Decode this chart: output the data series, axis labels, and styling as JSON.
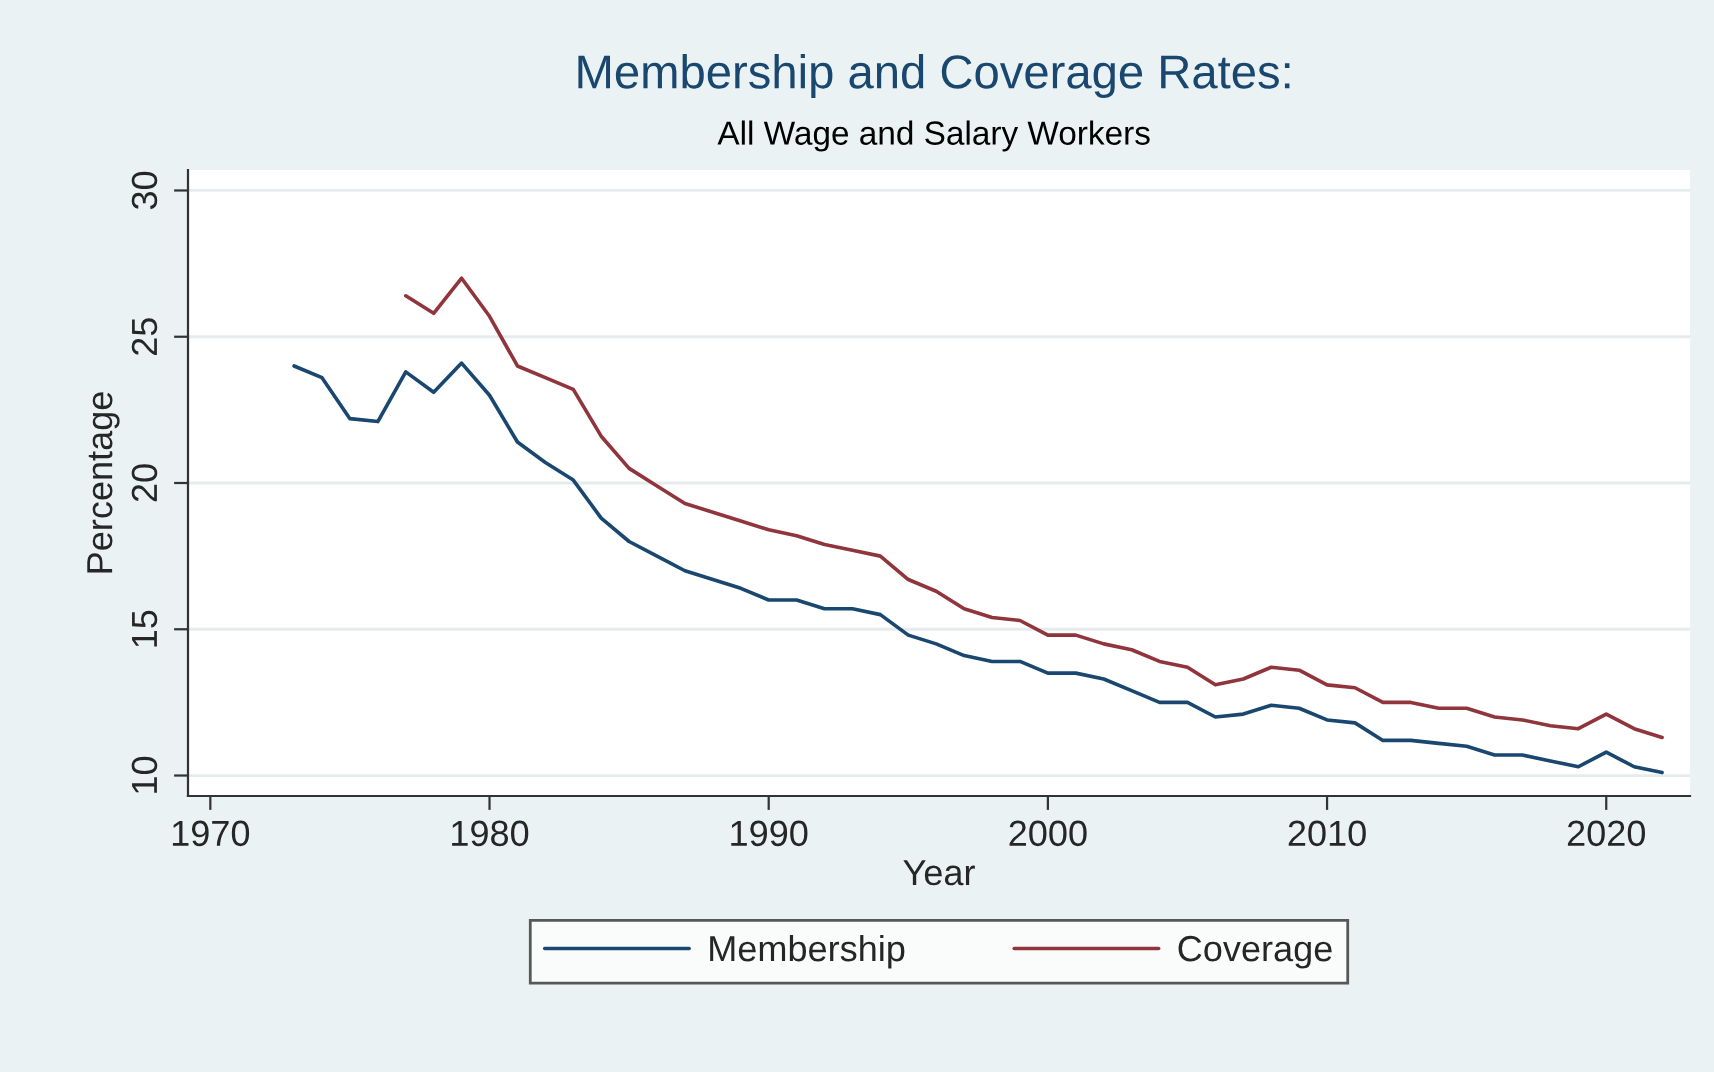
{
  "chart_data": {
    "type": "line",
    "title": "Membership and Coverage Rates:",
    "subtitle": "All Wage and Salary Workers",
    "xlabel": "Year",
    "ylabel": "Percentage",
    "xlim": [
      1969.2,
      2023.0
    ],
    "xticks": [
      1970,
      1980,
      1990,
      2000,
      2010,
      2020
    ],
    "ylim": [
      9.3,
      30.7
    ],
    "yticks": [
      10,
      15,
      20,
      25,
      30
    ],
    "grid": "y",
    "legend": "bottom",
    "line_style": "solid",
    "marker": "none",
    "series": [
      {
        "name": "Membership",
        "color": "#1a476f",
        "x": [
          1973,
          1974,
          1975,
          1976,
          1977,
          1978,
          1979,
          1980,
          1981,
          1982,
          1983,
          1984,
          1985,
          1986,
          1987,
          1988,
          1989,
          1990,
          1991,
          1992,
          1993,
          1994,
          1995,
          1996,
          1997,
          1998,
          1999,
          2000,
          2001,
          2002,
          2003,
          2004,
          2005,
          2006,
          2007,
          2008,
          2009,
          2010,
          2011,
          2012,
          2013,
          2014,
          2015,
          2016,
          2017,
          2018,
          2019,
          2020,
          2021,
          2022
        ],
        "values": [
          24.0,
          23.6,
          22.2,
          22.1,
          23.8,
          23.1,
          24.1,
          23.0,
          21.4,
          20.7,
          20.1,
          18.8,
          18.0,
          17.5,
          17.0,
          16.7,
          16.4,
          16.0,
          16.0,
          15.7,
          15.7,
          15.5,
          14.8,
          14.5,
          14.1,
          13.9,
          13.9,
          13.5,
          13.5,
          13.3,
          12.9,
          12.5,
          12.5,
          12.0,
          12.1,
          12.4,
          12.3,
          11.9,
          11.8,
          11.2,
          11.2,
          11.1,
          11.0,
          10.7,
          10.7,
          10.5,
          10.3,
          10.8,
          10.3,
          10.1
        ]
      },
      {
        "name": "Coverage",
        "color": "#90353b",
        "x": [
          1977,
          1978,
          1979,
          1980,
          1981,
          1982,
          1983,
          1984,
          1985,
          1986,
          1987,
          1988,
          1989,
          1990,
          1991,
          1992,
          1993,
          1994,
          1995,
          1996,
          1997,
          1998,
          1999,
          2000,
          2001,
          2002,
          2003,
          2004,
          2005,
          2006,
          2007,
          2008,
          2009,
          2010,
          2011,
          2012,
          2013,
          2014,
          2015,
          2016,
          2017,
          2018,
          2019,
          2020,
          2021,
          2022
        ],
        "values": [
          26.4,
          25.8,
          27.0,
          25.7,
          24.0,
          23.6,
          23.2,
          21.6,
          20.5,
          19.9,
          19.3,
          19.0,
          18.7,
          18.4,
          18.2,
          17.9,
          17.7,
          17.5,
          16.7,
          16.3,
          15.7,
          15.4,
          15.3,
          14.8,
          14.8,
          14.5,
          14.3,
          13.9,
          13.7,
          13.1,
          13.3,
          13.7,
          13.6,
          13.1,
          13.0,
          12.5,
          12.5,
          12.3,
          12.3,
          12.0,
          11.9,
          11.7,
          11.6,
          12.1,
          11.6,
          11.3
        ]
      }
    ]
  }
}
